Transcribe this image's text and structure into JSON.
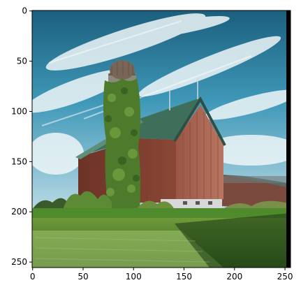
{
  "image": {
    "description_palette": {
      "sky_top": "#1f6f8f",
      "sky_mid": "#4aa6c4",
      "cloud": "#e9f3f6",
      "barn_wood": "#8f4a3a",
      "barn_wood_light": "#b0705c",
      "roof": "#3f6f5a",
      "silo_vine": "#4e7a2c",
      "silo_cap": "#6b5a4e",
      "grass_dark": "#2f5b1e",
      "grass_light": "#8fb55a",
      "foundation": "#d8d8d8"
    },
    "pixel_extent": {
      "width": 256,
      "height": 256
    }
  },
  "axes": {
    "x_ticks": [
      "0",
      "50",
      "100",
      "150",
      "200",
      "250"
    ],
    "y_ticks": [
      "0",
      "50",
      "100",
      "150",
      "200",
      "250"
    ],
    "x_tick_values": [
      0,
      50,
      100,
      150,
      200,
      250
    ],
    "y_tick_values": [
      0,
      50,
      100,
      150,
      200,
      250
    ]
  }
}
